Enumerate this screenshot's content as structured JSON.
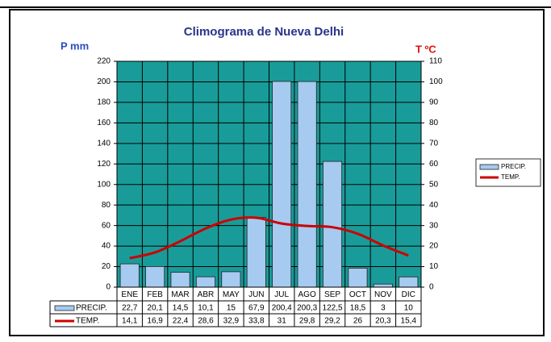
{
  "chart_data": {
    "type": "bar",
    "title": "Climograma de Nueva Delhi",
    "y_label": "P mm",
    "y2_label": "T ºC",
    "categories": [
      "ENE",
      "FEB",
      "MAR",
      "ABR",
      "MAY",
      "JUN",
      "JUL",
      "AGO",
      "SEP",
      "OCT",
      "NOV",
      "DIC"
    ],
    "series": [
      {
        "name": "PRECIP.",
        "color": "#a6caf0",
        "values": [
          22.7,
          20.1,
          14.5,
          10.1,
          15,
          67.9,
          200.4,
          200.3,
          122.5,
          18.5,
          3,
          10
        ],
        "value_labels": [
          "22,7",
          "20,1",
          "14,5",
          "10,1",
          "15",
          "67,9",
          "200,4",
          "200,3",
          "122,5",
          "18,5",
          "3",
          "10"
        ]
      },
      {
        "name": "TEMP.",
        "type": "line",
        "axis": "y2",
        "color": "#cc0000",
        "values": [
          14.1,
          16.9,
          22.4,
          28.6,
          32.9,
          33.8,
          31,
          29.8,
          29.2,
          26,
          20.3,
          15.4
        ],
        "value_labels": [
          "14,1",
          "16,9",
          "22,4",
          "28,6",
          "32,9",
          "33,8",
          "31",
          "29,8",
          "29,2",
          "26",
          "20,3",
          "15,4"
        ]
      }
    ],
    "ylim": [
      0,
      220
    ],
    "yticks": [
      0,
      20,
      40,
      60,
      80,
      100,
      120,
      140,
      160,
      180,
      200,
      220
    ],
    "y2lim": [
      0,
      110
    ],
    "y2ticks": [
      0,
      10,
      20,
      30,
      40,
      50,
      60,
      70,
      80,
      90,
      100,
      110
    ],
    "grid": true,
    "plot_background": "#199c99",
    "legend": "right"
  }
}
